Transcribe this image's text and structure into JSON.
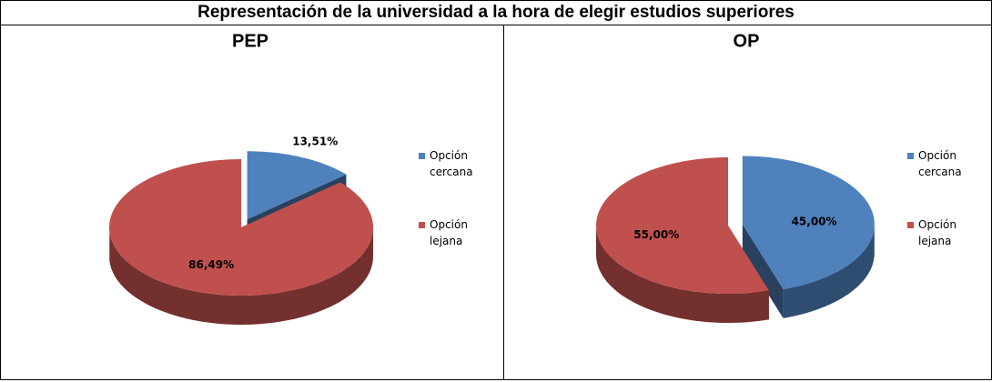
{
  "title": "Representación de la universidad a la hora de elegir estudios superiores",
  "chart_data": [
    {
      "type": "pie",
      "title": "PEP",
      "categories": [
        "Opción cercana",
        "Opción lejana"
      ],
      "values": [
        13.51,
        86.49
      ],
      "value_labels": [
        "13,51%",
        "86,49%"
      ],
      "colors": [
        "#4f81bd",
        "#c0504d"
      ]
    },
    {
      "type": "pie",
      "title": "OP",
      "categories": [
        "Opción cercana",
        "Opción lejana"
      ],
      "values": [
        45.0,
        55.0
      ],
      "value_labels": [
        "45,00%",
        "55,00%"
      ],
      "colors": [
        "#4f81bd",
        "#c0504d"
      ]
    }
  ]
}
